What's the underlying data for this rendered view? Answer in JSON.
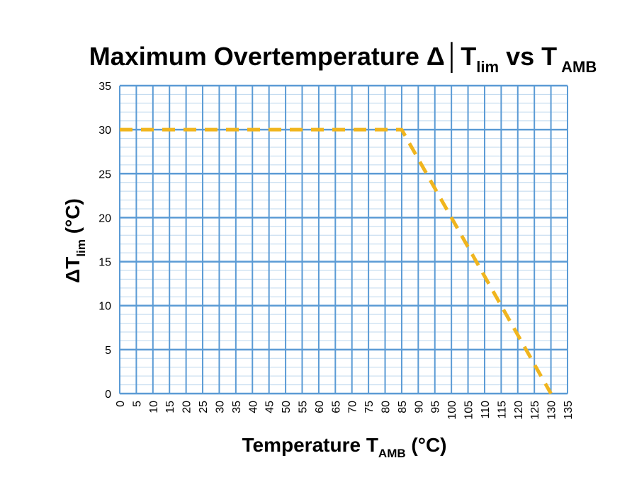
{
  "chart_data": {
    "type": "line",
    "title": {
      "main": "Maximum Overtemperature Δ│T",
      "sub1": "lim",
      "mid": " vs T",
      "sub2": "AMB"
    },
    "xlabel": {
      "main": "Temperature T",
      "sub": "AMB",
      "suffix": " (°C)"
    },
    "ylabel": {
      "main": "ΔT",
      "sub": "lim",
      "suffix": " (°C)"
    },
    "xlim": [
      0,
      135
    ],
    "ylim": [
      0,
      35
    ],
    "x_ticks": [
      0,
      5,
      10,
      15,
      20,
      25,
      30,
      35,
      40,
      45,
      50,
      55,
      60,
      65,
      70,
      75,
      80,
      85,
      90,
      95,
      100,
      105,
      110,
      115,
      120,
      125,
      130,
      135
    ],
    "y_ticks": [
      0,
      5,
      10,
      15,
      20,
      25,
      30,
      35
    ],
    "minor_y_step": 1,
    "grid": true,
    "series": [
      {
        "x": [
          0,
          85,
          130
        ],
        "y": [
          30,
          30,
          0
        ],
        "color": "#F0B51E",
        "style": "dashed"
      }
    ],
    "colors": {
      "major_grid": "#5B9BD5",
      "minor_grid": "#BDD7EE"
    }
  }
}
